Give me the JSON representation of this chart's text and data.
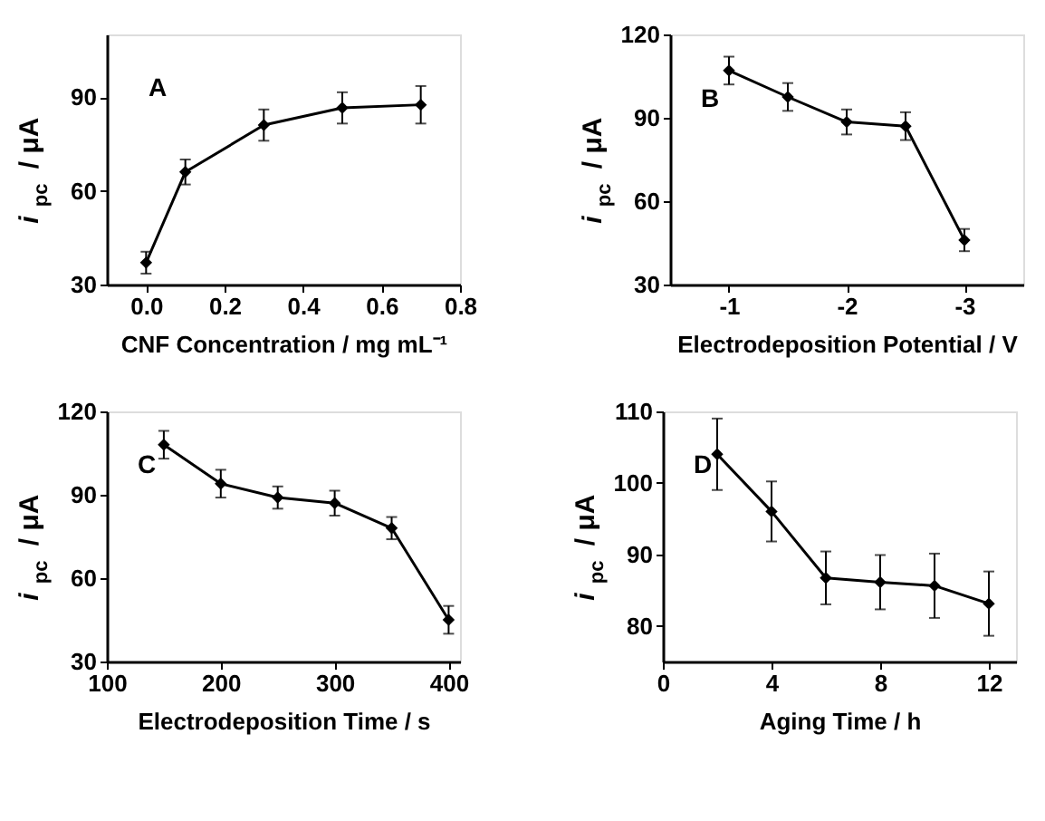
{
  "chart_data": [
    {
      "type": "line",
      "annotations": [
        "A"
      ],
      "xlabel": "CNF Concentration / mg mL⁻¹",
      "ylabel": "i$_{pc}$ / μA",
      "x": [
        0,
        0.1,
        0.3,
        0.5,
        0.7
      ],
      "series": [
        {
          "color": "#000000",
          "values": [
            37,
            66,
            81,
            86.5,
            87.5
          ],
          "errors": [
            3.5,
            4,
            5,
            5,
            6
          ]
        }
      ],
      "xlim": [
        -0.1,
        0.8
      ],
      "xticks": [
        {
          "value": 0,
          "label": "0.0"
        },
        0.2,
        0.4,
        0.6,
        0.8
      ],
      "ylim": [
        30,
        110
      ],
      "yticks": [
        30,
        60,
        90
      ],
      "marker": "diamond",
      "line_style": "solid",
      "grid": false
    },
    {
      "type": "line",
      "annotations": [
        "B"
      ],
      "xlabel": "Electrodeposition Potential / V",
      "ylabel": "i$_{pc}$ / μA",
      "x": [
        -1,
        -1.5,
        -2,
        -2.5,
        -3
      ],
      "series": [
        {
          "color": "#000000",
          "values": [
            107,
            97.5,
            88.5,
            87,
            46
          ],
          "errors": [
            5,
            5,
            4.5,
            5,
            4
          ]
        }
      ],
      "xlim": [
        -0.5,
        -3.5
      ],
      "xticks": [
        -1,
        -2,
        -3
      ],
      "ylim": [
        30,
        120
      ],
      "yticks": [
        30,
        60,
        90,
        120
      ],
      "marker": "diamond",
      "line_style": "solid",
      "grid": false
    },
    {
      "type": "line",
      "annotations": [
        "C"
      ],
      "xlabel": "Electrodeposition Time / s",
      "ylabel": "i$_{pc}$ / μA",
      "x": [
        150,
        200,
        250,
        300,
        350,
        400
      ],
      "series": [
        {
          "color": "#000000",
          "values": [
            108,
            94,
            89,
            87,
            78,
            45
          ],
          "errors": [
            5,
            5,
            4,
            4.5,
            4,
            5
          ]
        }
      ],
      "xlim": [
        100,
        410
      ],
      "xticks": [
        100,
        200,
        300,
        400
      ],
      "ylim": [
        30,
        120
      ],
      "yticks": [
        30,
        60,
        90,
        120
      ],
      "marker": "diamond",
      "line_style": "solid",
      "grid": false
    },
    {
      "type": "line",
      "annotations": [
        "D"
      ],
      "xlabel": "Aging  Time / h",
      "ylabel": "i$_{pc}$ / μA",
      "x": [
        2,
        4,
        6,
        8,
        10,
        12
      ],
      "series": [
        {
          "color": "#000000",
          "values": [
            104,
            96,
            86.7,
            86.1,
            85.6,
            83.1
          ],
          "errors": [
            5,
            4.2,
            3.7,
            3.8,
            4.5,
            4.5
          ]
        }
      ],
      "xlim": [
        0,
        13
      ],
      "xticks": [
        0,
        4,
        8,
        12
      ],
      "ylim": [
        75,
        110
      ],
      "yticks": [
        80,
        90,
        100,
        110
      ],
      "marker": "diamond",
      "line_style": "solid",
      "grid": false
    }
  ]
}
